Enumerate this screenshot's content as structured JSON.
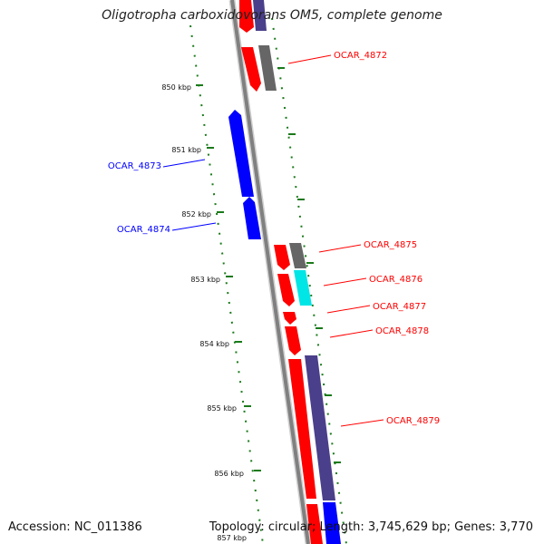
{
  "title": "Oligotropha carboxidovorans OM5, complete genome",
  "accession": "Accession: NC_011386",
  "summary": "Topology: circular; Length: 3,745,629 bp; Genes: 3,770",
  "colors": {
    "forward": "#ff0000",
    "reverse": "#0000ff",
    "gray": "#666666",
    "purple": "#4a3f8a",
    "cyan": "#00e5e5",
    "tick": "#1a7a1a",
    "backbone": "#888888"
  },
  "kbp_ticks": [
    "850 kbp",
    "851 kbp",
    "852 kbp",
    "853 kbp",
    "854 kbp",
    "855 kbp",
    "856 kbp",
    "857 kbp"
  ],
  "gene_labels": [
    {
      "name": "OCAR_4872",
      "strand": "forward"
    },
    {
      "name": "OCAR_4873",
      "strand": "reverse"
    },
    {
      "name": "OCAR_4874",
      "strand": "reverse"
    },
    {
      "name": "OCAR_4875",
      "strand": "forward"
    },
    {
      "name": "OCAR_4876",
      "strand": "forward"
    },
    {
      "name": "OCAR_4877",
      "strand": "forward"
    },
    {
      "name": "OCAR_4878",
      "strand": "forward"
    },
    {
      "name": "OCAR_4879",
      "strand": "forward"
    }
  ]
}
